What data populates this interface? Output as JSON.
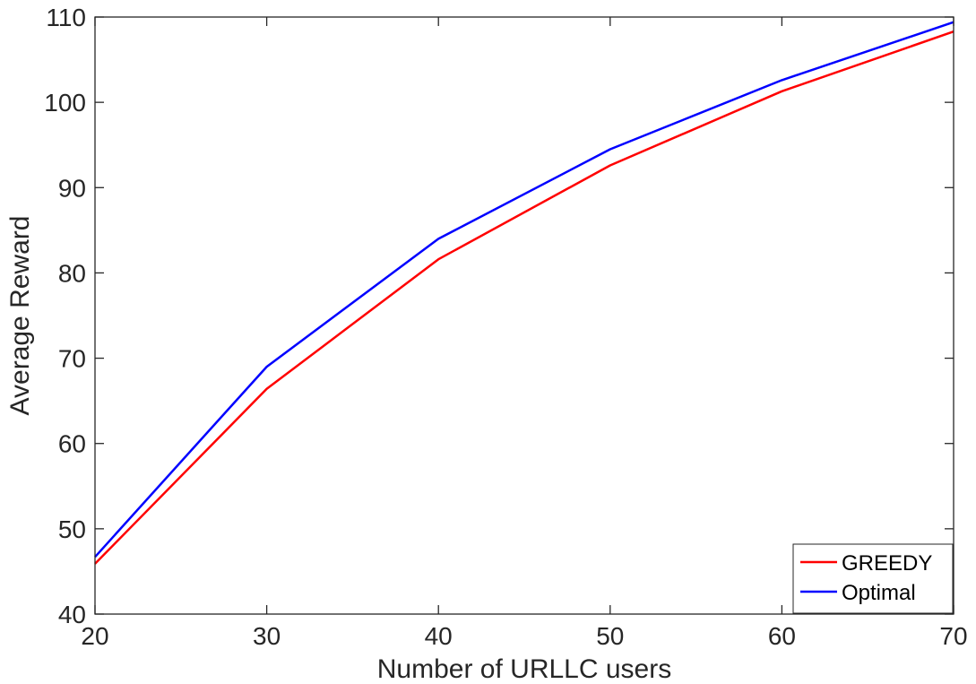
{
  "chart_data": {
    "type": "line",
    "title": "",
    "xlabel": "Number of URLLC users",
    "ylabel": "Average Reward",
    "xlim": [
      20,
      70
    ],
    "ylim": [
      40,
      110
    ],
    "xticks": [
      20,
      30,
      40,
      50,
      60,
      70
    ],
    "yticks": [
      40,
      50,
      60,
      70,
      80,
      90,
      100,
      110
    ],
    "x": [
      20,
      30,
      40,
      50,
      60,
      70
    ],
    "series": [
      {
        "name": "GREEDY",
        "color": "#ff0000",
        "values": [
          45.9,
          66.4,
          81.6,
          92.6,
          101.3,
          108.3
        ]
      },
      {
        "name": "Optimal",
        "color": "#0000ff",
        "values": [
          46.7,
          69.0,
          84.0,
          94.5,
          102.6,
          109.4
        ]
      }
    ],
    "grid": false,
    "legend_position": "bottom-right"
  }
}
